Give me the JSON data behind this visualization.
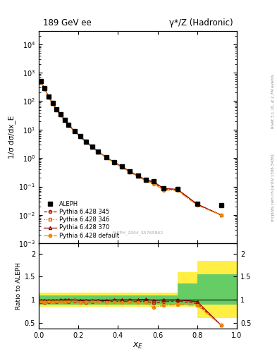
{
  "title_left": "189 GeV ee",
  "title_right": "γ*/Z (Hadronic)",
  "right_label1": "Rivet 3.1.10, ≥ 2.7M events",
  "right_label2": "mcplots.cern.ch [arXiv:1306.3436]",
  "ref_label": "ALEPH_2004_S5765862",
  "ylabel_main": "1/σ dσ/dx_E",
  "ylabel_ratio": "Ratio to ALEPH",
  "xlabel": "x_E",
  "xlim": [
    0.0,
    1.0
  ],
  "ylim_main": [
    0.001,
    30000.0
  ],
  "xE_data": [
    0.01,
    0.03,
    0.05,
    0.07,
    0.09,
    0.11,
    0.13,
    0.15,
    0.18,
    0.21,
    0.24,
    0.27,
    0.3,
    0.34,
    0.38,
    0.42,
    0.46,
    0.5,
    0.54,
    0.58,
    0.63,
    0.7,
    0.8,
    0.92
  ],
  "aleph_y": [
    500,
    280,
    145,
    85,
    52,
    34,
    22,
    15,
    9.0,
    5.8,
    3.8,
    2.5,
    1.7,
    1.1,
    0.72,
    0.5,
    0.34,
    0.24,
    0.17,
    0.15,
    0.085,
    0.08,
    0.025,
    0.022
  ],
  "py345_y": [
    480,
    265,
    140,
    82,
    50,
    33,
    21,
    14.5,
    8.8,
    5.5,
    3.6,
    2.4,
    1.65,
    1.05,
    0.7,
    0.48,
    0.33,
    0.23,
    0.165,
    0.14,
    0.082,
    0.078,
    0.023,
    0.01
  ],
  "py346_y": [
    490,
    270,
    142,
    83,
    51,
    33.5,
    21.5,
    14.8,
    8.9,
    5.6,
    3.7,
    2.45,
    1.66,
    1.06,
    0.71,
    0.49,
    0.335,
    0.235,
    0.168,
    0.145,
    0.083,
    0.079,
    0.0235,
    0.01
  ],
  "py370_y": [
    495,
    275,
    143,
    84,
    51.5,
    34,
    22,
    15.0,
    9.0,
    5.7,
    3.75,
    2.48,
    1.68,
    1.08,
    0.72,
    0.5,
    0.34,
    0.24,
    0.172,
    0.148,
    0.085,
    0.08,
    0.024,
    0.01
  ],
  "pydef_y": [
    485,
    268,
    141,
    82,
    50.5,
    33,
    21.2,
    14.6,
    8.85,
    5.5,
    3.62,
    2.42,
    1.64,
    1.04,
    0.69,
    0.47,
    0.325,
    0.225,
    0.16,
    0.125,
    0.075,
    0.072,
    0.022,
    0.01
  ],
  "ratio_xE": [
    0.01,
    0.03,
    0.05,
    0.07,
    0.09,
    0.11,
    0.13,
    0.15,
    0.18,
    0.21,
    0.24,
    0.27,
    0.3,
    0.34,
    0.38,
    0.42,
    0.46,
    0.5,
    0.54,
    0.58,
    0.63,
    0.7,
    0.8,
    0.92
  ],
  "ratio_py345": [
    0.96,
    0.945,
    0.965,
    0.965,
    0.96,
    0.97,
    0.955,
    0.965,
    0.975,
    0.95,
    0.95,
    0.96,
    0.97,
    0.955,
    0.97,
    0.96,
    0.97,
    0.96,
    0.97,
    0.93,
    0.96,
    0.975,
    0.92,
    0.455
  ],
  "ratio_py346": [
    0.98,
    0.965,
    0.978,
    0.976,
    0.98,
    0.985,
    0.977,
    0.987,
    0.989,
    0.966,
    0.974,
    0.98,
    0.976,
    0.964,
    0.986,
    0.98,
    0.985,
    0.98,
    0.988,
    0.967,
    0.976,
    0.988,
    0.94,
    0.455
  ],
  "ratio_py370": [
    0.99,
    0.982,
    0.986,
    0.988,
    0.99,
    0.999,
    0.999,
    0.999,
    0.999,
    0.983,
    0.987,
    0.992,
    0.988,
    0.982,
    0.999,
    0.999,
    0.999,
    0.999,
    1.012,
    0.987,
    0.999,
    0.999,
    0.96,
    0.455
  ],
  "ratio_pydef": [
    0.97,
    0.956,
    0.972,
    0.965,
    0.97,
    0.97,
    0.965,
    0.97,
    0.982,
    0.95,
    0.953,
    0.968,
    0.965,
    0.945,
    0.958,
    0.94,
    0.956,
    0.938,
    0.94,
    0.833,
    0.882,
    0.9,
    0.88,
    0.455
  ],
  "band_edges": [
    0.0,
    0.1,
    0.2,
    0.3,
    0.4,
    0.5,
    0.6,
    0.7,
    0.8,
    1.0
  ],
  "band_green_lo": [
    0.9,
    0.9,
    0.9,
    0.9,
    0.9,
    0.9,
    0.9,
    0.9,
    0.9,
    0.9
  ],
  "band_green_hi": [
    1.1,
    1.1,
    1.1,
    1.1,
    1.1,
    1.1,
    1.1,
    1.35,
    1.55,
    1.55
  ],
  "band_yellow_lo": [
    0.85,
    0.85,
    0.85,
    0.85,
    0.85,
    0.85,
    0.85,
    0.85,
    0.6,
    0.6
  ],
  "band_yellow_hi": [
    1.15,
    1.15,
    1.15,
    1.15,
    1.15,
    1.15,
    1.15,
    1.6,
    1.85,
    1.85
  ],
  "color_aleph": "#000000",
  "color_py345": "#cc0000",
  "color_py346": "#cc6600",
  "color_py370": "#990000",
  "color_pydef": "#ee8800",
  "color_green": "#66cc66",
  "color_yellow": "#ffee44"
}
